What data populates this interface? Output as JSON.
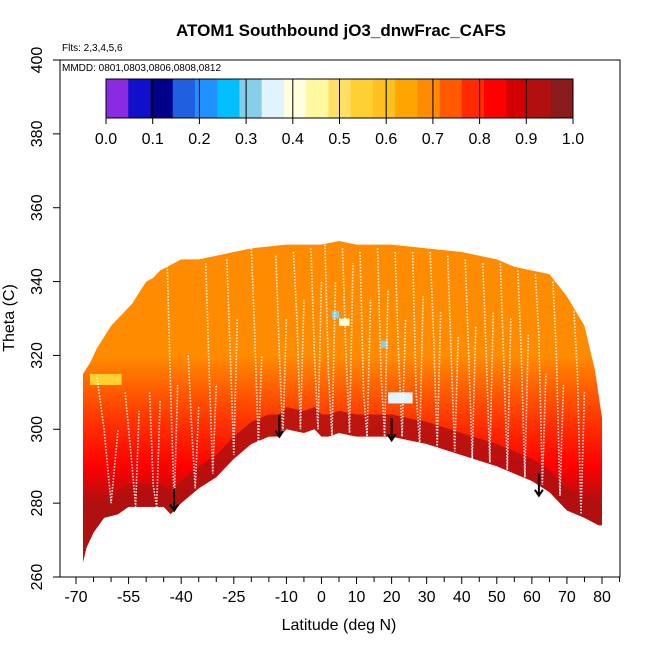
{
  "chart_data": {
    "type": "heatmap",
    "title": "ATOM1 Southbound jO3_dnwFrac_CAFS",
    "subtitle_flights": "Flts: 2,3,4,5,6",
    "subtitle_dates": "MMDD: 0801,0803,0806,0808,0812",
    "xlabel": "Latitude (deg N)",
    "ylabel": "Theta (C)",
    "xlim": [
      -70,
      85
    ],
    "ylim": [
      260,
      400
    ],
    "x_ticks": [
      -70,
      -55,
      -40,
      -25,
      -10,
      0,
      10,
      20,
      30,
      40,
      50,
      60,
      70,
      80
    ],
    "x_tick_labels": [
      "-70",
      "-55",
      "-40",
      "-25",
      "-10",
      "0",
      "10",
      "20",
      "30",
      "40",
      "50",
      "60",
      "70",
      "80"
    ],
    "x_minor_ticks": [
      -65,
      -60,
      -50,
      -45,
      -35,
      -30,
      -20,
      -15,
      -5,
      5,
      15,
      25,
      35,
      45,
      55,
      65,
      75,
      85
    ],
    "y_ticks": [
      260,
      280,
      300,
      320,
      340,
      360,
      380,
      400
    ],
    "y_tick_labels": [
      "260",
      "280",
      "300",
      "320",
      "340",
      "360",
      "380",
      "400"
    ],
    "colorbar": {
      "ticks": [
        0.0,
        0.1,
        0.2,
        0.3,
        0.4,
        0.5,
        0.6,
        0.7,
        0.8,
        0.9,
        1.0
      ],
      "tick_labels": [
        "0.0",
        "0.1",
        "0.2",
        "0.3",
        "0.4",
        "0.5",
        "0.6",
        "0.7",
        "0.8",
        "0.9",
        "1.0"
      ],
      "colors": [
        "#8a2be2",
        "#1010cc",
        "#00008b",
        "#2060e0",
        "#1e90ff",
        "#00bfff",
        "#87ceeb",
        "#e0f4ff",
        "#ffffe0",
        "#fff8a0",
        "#ffe066",
        "#ffd030",
        "#ffc020",
        "#ffa500",
        "#ff8c00",
        "#ff5a00",
        "#ff2a00",
        "#ff0000",
        "#d40000",
        "#b01010",
        "#8b1a1a"
      ]
    },
    "color_domain": [
      0,
      1
    ],
    "data_bottom_boundary": {
      "lat": [
        -68,
        -67,
        -65,
        -62,
        -58,
        -55,
        -52,
        -50,
        -48,
        -45,
        -43,
        -41,
        -40,
        -35,
        -30,
        -25,
        -20,
        -15,
        -12,
        -10,
        -5,
        -2,
        0,
        2,
        5,
        10,
        15,
        20,
        25,
        30,
        40,
        50,
        55,
        60,
        65,
        70,
        75,
        79,
        80
      ],
      "theta": [
        264,
        268,
        272,
        276,
        277,
        279,
        279,
        279,
        279,
        279,
        277,
        279,
        280,
        284,
        287,
        292,
        296,
        298,
        298,
        300,
        299,
        300,
        298,
        298,
        299,
        298,
        298,
        298,
        297,
        296,
        293,
        290,
        288,
        286,
        283,
        278,
        276,
        274,
        274
      ]
    },
    "data_top_boundary": {
      "lat": [
        -68,
        -66,
        -64,
        -62,
        -60,
        -58,
        -56,
        -54,
        -52,
        -50,
        -48,
        -46,
        -44,
        -42,
        -40,
        -38,
        -35,
        -30,
        -25,
        -20,
        -10,
        0,
        5,
        10,
        20,
        30,
        40,
        50,
        55,
        60,
        65,
        70,
        75,
        78,
        80
      ],
      "theta": [
        315,
        318,
        322,
        325,
        328,
        330,
        332,
        334,
        337,
        340,
        341,
        343,
        344,
        345,
        346,
        346,
        346,
        347,
        348,
        349,
        350,
        350,
        351,
        350,
        350,
        349,
        348,
        346,
        344,
        343,
        342,
        336,
        328,
        316,
        303
      ]
    },
    "profile_heat": [
      {
        "theta": 280,
        "value": 0.93
      },
      {
        "theta": 290,
        "value": 0.85
      },
      {
        "theta": 300,
        "value": 0.78
      },
      {
        "theta": 310,
        "value": 0.73
      },
      {
        "theta": 320,
        "value": 0.7
      },
      {
        "theta": 330,
        "value": 0.69
      },
      {
        "theta": 340,
        "value": 0.68
      },
      {
        "theta": 350,
        "value": 0.68
      }
    ],
    "low_value_patches": [
      {
        "lat_min": -66,
        "lat_max": -57,
        "theta_min": 312,
        "theta_max": 315,
        "value": 0.55
      },
      {
        "lat_min": 3,
        "lat_max": 5,
        "theta_min": 330,
        "theta_max": 332,
        "value": 0.33
      },
      {
        "lat_min": 5,
        "lat_max": 8,
        "theta_min": 328,
        "theta_max": 330,
        "value": 0.42
      },
      {
        "lat_min": 17,
        "lat_max": 19,
        "theta_min": 322,
        "theta_max": 324,
        "value": 0.32
      },
      {
        "lat_min": 19,
        "lat_max": 26,
        "theta_min": 307,
        "theta_max": 310,
        "value": 0.35
      }
    ],
    "profile_lines": [
      {
        "lat": [
          -64,
          -62,
          -60,
          -58
        ],
        "theta": [
          314,
          300,
          280,
          300
        ]
      },
      {
        "lat": [
          -56,
          -54,
          -53,
          -52
        ],
        "theta": [
          310,
          290,
          279,
          305
        ]
      },
      {
        "lat": [
          -49,
          -48,
          -47,
          -46
        ],
        "theta": [
          310,
          285,
          279,
          308
        ]
      },
      {
        "lat": [
          -44,
          -43,
          -42,
          -41
        ],
        "theta": [
          345,
          310,
          280,
          312
        ]
      },
      {
        "lat": [
          -38,
          -37,
          -36,
          -35
        ],
        "theta": [
          320,
          300,
          284,
          306
        ]
      },
      {
        "lat": [
          -33,
          -32,
          -31,
          -30
        ],
        "theta": [
          345,
          315,
          288,
          312
        ]
      },
      {
        "lat": [
          -27,
          -26,
          -25,
          -24
        ],
        "theta": [
          346,
          320,
          293,
          330
        ]
      },
      {
        "lat": [
          -20,
          -19,
          -18,
          -17
        ],
        "theta": [
          349,
          325,
          296,
          320
        ]
      },
      {
        "lat": [
          -13,
          -12,
          -11,
          -10
        ],
        "theta": [
          347,
          320,
          298,
          330
        ]
      },
      {
        "lat": [
          -8,
          -7,
          -6,
          -5
        ],
        "theta": [
          348,
          330,
          300,
          335
        ]
      },
      {
        "lat": [
          -3,
          -2,
          -1,
          0
        ],
        "theta": [
          349,
          320,
          300,
          340
        ]
      },
      {
        "lat": [
          1,
          2,
          3,
          4
        ],
        "theta": [
          350,
          315,
          298,
          340
        ]
      },
      {
        "lat": [
          6,
          7,
          8,
          9
        ],
        "theta": [
          349,
          320,
          299,
          345
        ]
      },
      {
        "lat": [
          11,
          12,
          13,
          14
        ],
        "theta": [
          348,
          310,
          298,
          335
        ]
      },
      {
        "lat": [
          16,
          17,
          18,
          19
        ],
        "theta": [
          349,
          315,
          298,
          338
        ]
      },
      {
        "lat": [
          21,
          22,
          23,
          24
        ],
        "theta": [
          348,
          320,
          298,
          330
        ]
      },
      {
        "lat": [
          26,
          27,
          28,
          29
        ],
        "theta": [
          348,
          310,
          296,
          336
        ]
      },
      {
        "lat": [
          31,
          32,
          33,
          34
        ],
        "theta": [
          348,
          325,
          295,
          332
        ]
      },
      {
        "lat": [
          36,
          37,
          38,
          39
        ],
        "theta": [
          347,
          320,
          294,
          325
        ]
      },
      {
        "lat": [
          41,
          42,
          43,
          44
        ],
        "theta": [
          346,
          320,
          292,
          328
        ]
      },
      {
        "lat": [
          46,
          47,
          48,
          49
        ],
        "theta": [
          345,
          320,
          291,
          332
        ]
      },
      {
        "lat": [
          51,
          52,
          53,
          54
        ],
        "theta": [
          345,
          318,
          289,
          330
        ]
      },
      {
        "lat": [
          56,
          57,
          58,
          59
        ],
        "theta": [
          343,
          320,
          287,
          326
        ]
      },
      {
        "lat": [
          61,
          62,
          63,
          64
        ],
        "theta": [
          342,
          325,
          285,
          315
        ]
      },
      {
        "lat": [
          66,
          67,
          68,
          69
        ],
        "theta": [
          340,
          320,
          282,
          312
        ]
      },
      {
        "lat": [
          72,
          73,
          74,
          75
        ],
        "theta": [
          332,
          315,
          277,
          310
        ]
      }
    ],
    "arrows": [
      {
        "lat": -42,
        "theta_start": 284,
        "theta_end": 278
      },
      {
        "lat": -12,
        "theta_start": 304,
        "theta_end": 298
      },
      {
        "lat": 20,
        "theta_start": 303,
        "theta_end": 297
      },
      {
        "lat": 62,
        "theta_start": 288,
        "theta_end": 282
      }
    ]
  }
}
